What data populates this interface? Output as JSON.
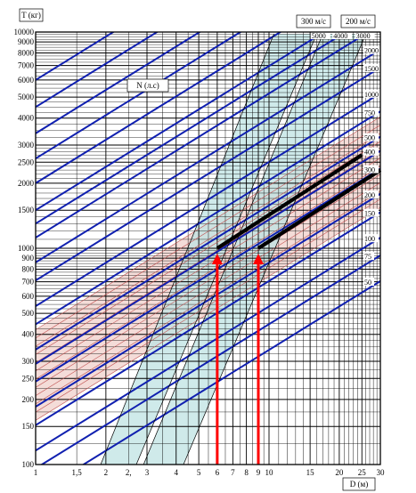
{
  "chart_data": {
    "type": "line",
    "title": "",
    "ylabel": "T (кг)",
    "xlabel": "D (м)",
    "power_label": "N (л.с)",
    "x_scale": "log",
    "y_scale": "log",
    "xlim": [
      1,
      30
    ],
    "ylim": [
      100,
      10000
    ],
    "grid": true,
    "x_ticks": [
      {
        "v": 1,
        "label": "1"
      },
      {
        "v": 1.5,
        "label": "1,5"
      },
      {
        "v": 2,
        "label": "2"
      },
      {
        "v": 2.5,
        "label": "2,"
      },
      {
        "v": 3,
        "label": "3"
      },
      {
        "v": 4,
        "label": "4"
      },
      {
        "v": 5,
        "label": "5"
      },
      {
        "v": 6,
        "label": "6"
      },
      {
        "v": 7,
        "label": "7"
      },
      {
        "v": 8,
        "label": "8"
      },
      {
        "v": 9,
        "label": "9"
      },
      {
        "v": 10,
        "label": "10"
      },
      {
        "v": 15,
        "label": "15"
      },
      {
        "v": 20,
        "label": "20"
      },
      {
        "v": 25,
        "label": "25"
      },
      {
        "v": 30,
        "label": "30"
      }
    ],
    "y_ticks": [
      {
        "v": 100,
        "label": "100"
      },
      {
        "v": 150,
        "label": "150"
      },
      {
        "v": 200,
        "label": "200"
      },
      {
        "v": 250,
        "label": "250"
      },
      {
        "v": 300,
        "label": "300"
      },
      {
        "v": 400,
        "label": "400"
      },
      {
        "v": 500,
        "label": "500"
      },
      {
        "v": 600,
        "label": "600"
      },
      {
        "v": 700,
        "label": "700"
      },
      {
        "v": 800,
        "label": "800"
      },
      {
        "v": 900,
        "label": "900"
      },
      {
        "v": 1000,
        "label": "1000"
      },
      {
        "v": 1500,
        "label": "1500"
      },
      {
        "v": 2000,
        "label": "2000"
      },
      {
        "v": 2500,
        "label": "2500"
      },
      {
        "v": 3000,
        "label": "3000"
      },
      {
        "v": 4000,
        "label": "4000"
      },
      {
        "v": 5000,
        "label": "5000"
      },
      {
        "v": 6000,
        "label": "6000"
      },
      {
        "v": 7000,
        "label": "7000"
      },
      {
        "v": 8000,
        "label": "8000"
      },
      {
        "v": 9000,
        "label": "9000"
      },
      {
        "v": 10000,
        "label": "10000"
      }
    ],
    "power_lines": [
      {
        "label": "5000",
        "t_at_d1": 1500,
        "label_at": "top"
      },
      {
        "label": "4000",
        "t_at_d1": 1300,
        "label_at": "top"
      },
      {
        "label": "3000",
        "t_at_d1": 1120,
        "label_at": "top"
      },
      {
        "label": "2000",
        "t_at_d1": 860,
        "label_at": "right"
      },
      {
        "label": "1500",
        "t_at_d1": 710,
        "label_at": "right"
      },
      {
        "label": "1000",
        "t_at_d1": 540,
        "label_at": "right"
      },
      {
        "label": "750",
        "t_at_d1": 445,
        "label_at": "right"
      },
      {
        "label": "500",
        "t_at_d1": 340,
        "label_at": "right"
      },
      {
        "label": "400",
        "t_at_d1": 292,
        "label_at": "right"
      },
      {
        "label": "300",
        "t_at_d1": 242,
        "label_at": "right"
      },
      {
        "label": "200",
        "t_at_d1": 185,
        "label_at": "right"
      },
      {
        "label": "150",
        "t_at_d1": 152,
        "label_at": "right"
      },
      {
        "label": "100",
        "t_at_d1": 116,
        "label_at": "right"
      },
      {
        "label": "75",
        "t_at_d1": 96,
        "label_at": "right"
      },
      {
        "label": "50",
        "t_at_d1": 73,
        "label_at": "right"
      },
      {
        "label": "",
        "t_at_d1": 2000,
        "label_at": "none"
      },
      {
        "label": "",
        "t_at_d1": 2600,
        "label_at": "none"
      },
      {
        "label": "",
        "t_at_d1": 3400,
        "label_at": "none"
      },
      {
        "label": "",
        "t_at_d1": 4500,
        "label_at": "none"
      },
      {
        "label": "",
        "t_at_d1": 6000,
        "label_at": "none"
      }
    ],
    "power_line_slope": 0.6667,
    "red_band": {
      "t_low_at_d1": 160,
      "t_high_at_d1": 420,
      "count": 12
    },
    "velocity_bands": [
      {
        "label": "300 м/с",
        "lower": [
          [
            2.7,
            100
          ],
          [
            16,
            9800
          ]
        ],
        "upper": [
          [
            1.9,
            100
          ],
          [
            10.5,
            9800
          ]
        ]
      },
      {
        "label": "200 м/с",
        "lower": [
          [
            4.3,
            100
          ],
          [
            26,
            9800
          ]
        ],
        "upper": [
          [
            2.9,
            100
          ],
          [
            17,
            9800
          ]
        ]
      }
    ],
    "highlight_lines": [
      {
        "name": "",
        "x": [
          6,
          25
        ],
        "y": [
          1000,
          2700
        ],
        "color": "#000000"
      },
      {
        "name": "",
        "x": [
          9,
          30
        ],
        "y": [
          1000,
          2300
        ],
        "color": "#000000"
      }
    ],
    "arrows": [
      {
        "x": 6,
        "y_from": 100,
        "y_to": 1000,
        "color": "#ff0000"
      },
      {
        "x": 9,
        "y_from": 100,
        "y_to": 1000,
        "color": "#ff0000"
      }
    ],
    "colors": {
      "power": "#1020b0",
      "red_band": "#c05050",
      "red_fill": "#f4dcd8",
      "velocity_fill": "#bfe3e3",
      "grid": "#000000",
      "arrow": "#ff0000"
    }
  }
}
